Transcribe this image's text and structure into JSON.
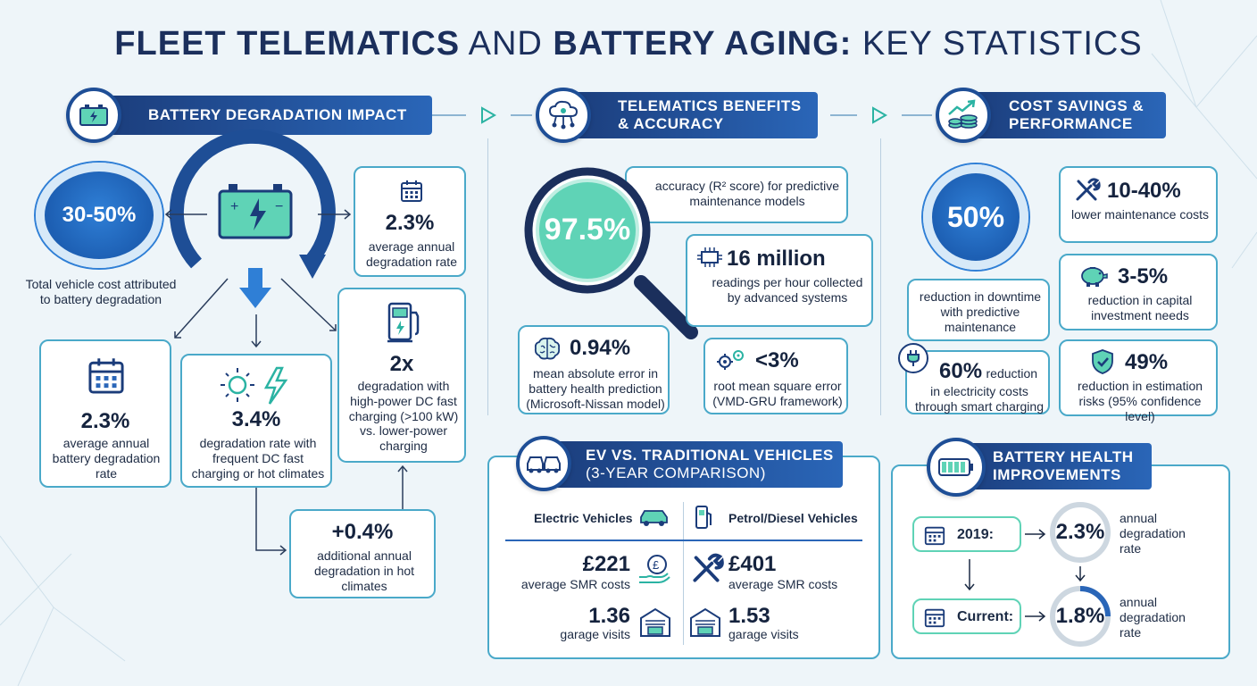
{
  "title": {
    "part1": "FLEET TELEMATICS",
    "part2": "AND",
    "part3": "BATTERY AGING:",
    "part4": "KEY STATISTICS"
  },
  "colors": {
    "navy": "#1b3c7a",
    "blue": "#2a66b8",
    "teal": "#4aa9c9",
    "mint": "#5fd3b6"
  },
  "degradation": {
    "header": "BATTERY DEGRADATION IMPACT",
    "icon": "battery-icon",
    "circle_value": "30-50%",
    "circle_label": "Total vehicle cost attributed to battery degradation",
    "top_box": {
      "value": "2.3%",
      "label": "average annual degradation rate",
      "icon": "calendar-icon"
    },
    "box_left": {
      "value": "2.3%",
      "label": "average annual battery degradation rate",
      "icon": "calendar-icon"
    },
    "box_mid": {
      "value": "3.4%",
      "label": "degradation rate with frequent DC fast charging or hot climates",
      "icon": "sun-bolt-icon"
    },
    "box_right": {
      "value": "2x",
      "label": "degradation with high-power DC fast charging (>100 kW) vs. lower-power charging",
      "icon": "charger-icon"
    },
    "box_bottom": {
      "value": "+0.4%",
      "label": "additional annual degradation in hot climates"
    }
  },
  "telematics": {
    "header_line1": "TELEMATICS BENEFITS",
    "header_line2": "& ACCURACY",
    "icon": "cloud-network-icon",
    "accuracy_value": "97.5%",
    "accuracy_label": "accuracy (R² score) for predictive maintenance models",
    "readings": {
      "value": "16 million",
      "label": "readings per hour collected by advanced systems",
      "icon": "circuit-icon"
    },
    "mae": {
      "value": "0.94%",
      "label": "mean absolute error in battery health prediction (Microsoft-Nissan model)",
      "icon": "brain-icon"
    },
    "rmse": {
      "value": "<3%",
      "label": "root mean square error (VMD-GRU framework)",
      "icon": "gears-icon"
    }
  },
  "cost": {
    "header_line1": "COST SAVINGS &",
    "header_line2": "PERFORMANCE",
    "icon": "growth-coins-icon",
    "circle_value": "50%",
    "circle_label": "reduction in downtime with predictive maintenance",
    "maint": {
      "value": "10-40%",
      "label": "lower maintenance costs",
      "icon": "tools-icon"
    },
    "capital": {
      "value": "3-5%",
      "label": "reduction in capital investment needs",
      "icon": "piggy-bank-icon"
    },
    "electricity": {
      "value": "60%",
      "label_inline": "reduction",
      "label": "in electricity costs through smart charging",
      "icon": "plug-icon"
    },
    "estimation": {
      "value": "49%",
      "label": "reduction in estimation risks (95% confidence level)",
      "icon": "shield-check-icon"
    }
  },
  "ev_compare": {
    "header_line1": "EV VS. TRADITIONAL VEHICLES",
    "header_line2": "(3-YEAR COMPARISON)",
    "icon": "cars-icon",
    "col_ev": "Electric Vehicles",
    "col_ice": "Petrol/Diesel Vehicles",
    "ev_smr": "£221",
    "ice_smr": "£401",
    "smr_label": "average SMR costs",
    "ev_visits": "1.36",
    "ice_visits": "1.53",
    "visits_label": "garage visits"
  },
  "health": {
    "header_line1": "BATTERY HEALTH",
    "header_line2": "IMPROVEMENTS",
    "icon": "battery-level-icon",
    "row1_label": "2019:",
    "row1_value": "2.3%",
    "row2_label": "Current:",
    "row2_value": "1.8%",
    "rate_label": "annual degradation rate"
  }
}
